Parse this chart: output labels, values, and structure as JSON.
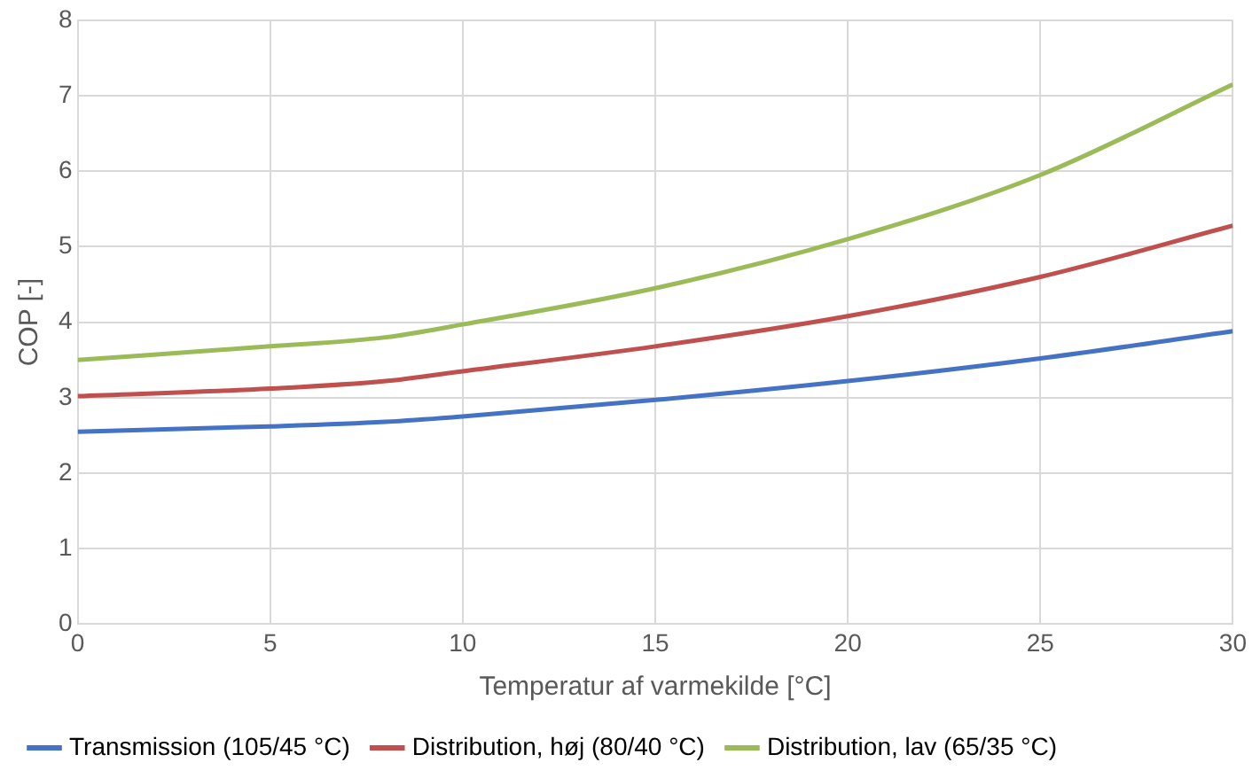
{
  "chart_data": {
    "type": "line",
    "xlabel": "Temperatur af varmekilde [°C]",
    "ylabel": "COP [-]",
    "x": [
      0,
      5,
      8,
      10,
      15,
      20,
      25,
      30
    ],
    "series": [
      {
        "name": "Transmission (105/45 °C)",
        "color": "#4472c4",
        "values": [
          2.55,
          2.62,
          2.68,
          2.75,
          2.97,
          3.22,
          3.52,
          3.88
        ]
      },
      {
        "name": "Distribution, høj (80/40 °C)",
        "color": "#c0504d",
        "values": [
          3.02,
          3.12,
          3.22,
          3.35,
          3.68,
          4.08,
          4.6,
          5.28
        ]
      },
      {
        "name": "Distribution, lav (65/35 °C)",
        "color": "#9bbb59",
        "values": [
          3.5,
          3.68,
          3.8,
          3.97,
          4.45,
          5.1,
          5.95,
          7.15
        ]
      }
    ],
    "xlim": [
      0,
      30
    ],
    "xticks": [
      0,
      5,
      10,
      15,
      20,
      25,
      30
    ],
    "ylim": [
      0,
      8
    ],
    "yticks": [
      0,
      1,
      2,
      3,
      4,
      5,
      6,
      7,
      8
    ],
    "grid": true,
    "legend": "bottom",
    "marker": "none",
    "line_style": "solid"
  }
}
